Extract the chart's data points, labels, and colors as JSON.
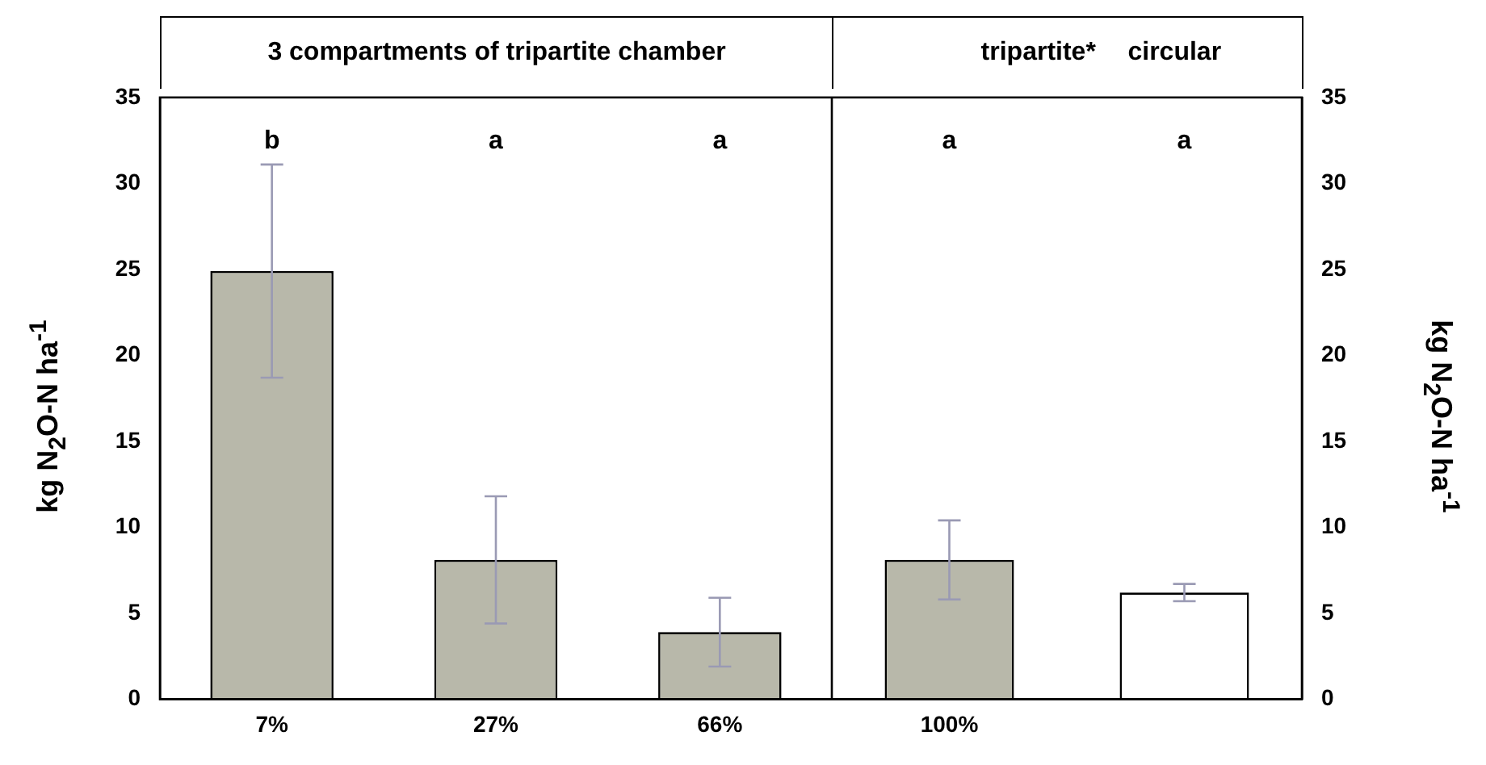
{
  "chart_data": [
    {
      "type": "bar",
      "title": "3 compartments of tripartite chamber",
      "ylabel": "kg N$_{2}$O-N ha$^{-1}$",
      "categories": [
        "7%",
        "27%",
        "66%"
      ],
      "values": [
        24.9,
        8.1,
        3.9
      ],
      "colors": [
        "#b8b8aa",
        "#b8b8aa",
        "#b8b8aa"
      ],
      "errors": [
        [
          18.7,
          31.1
        ],
        [
          4.4,
          11.8
        ],
        [
          1.9,
          5.9
        ]
      ],
      "ylim": [
        0,
        35
      ],
      "yticks": [
        0,
        5,
        10,
        15,
        20,
        25,
        30,
        35
      ],
      "grid": false,
      "legend": false,
      "annotations": [
        "b",
        "a",
        "a"
      ]
    },
    {
      "type": "bar",
      "y2label": "kg N$_{2}$O-N ha$^{-1}$",
      "categories": [
        "100%",
        null
      ],
      "series": [
        {
          "axis": "y2",
          "values": [
            8.1,
            6.2
          ],
          "colors": [
            "#b8b8aa",
            "#ffffff"
          ],
          "errors": [
            [
              5.8,
              10.4
            ],
            [
              5.7,
              6.7
            ]
          ]
        }
      ],
      "y2lim": [
        0,
        35
      ],
      "y2ticks": [
        0,
        5,
        10,
        15,
        20,
        25,
        30,
        35
      ],
      "grid": false,
      "legend": false,
      "annotations": [
        "a",
        "a",
        "tripartite*",
        "circular"
      ]
    }
  ]
}
